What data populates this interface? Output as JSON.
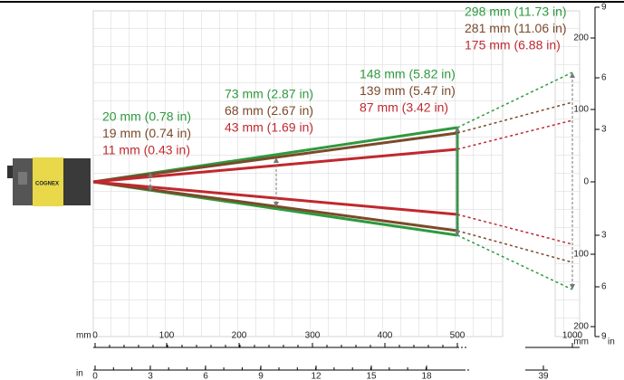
{
  "fov_groups": [
    {
      "lines": [
        "20 mm (0.78 in)",
        "19 mm (0.74 in)",
        "11 mm (0.43 in)"
      ]
    },
    {
      "lines": [
        "73 mm (2.87 in)",
        "68 mm (2.67 in)",
        "43 mm (1.69 in)"
      ]
    },
    {
      "lines": [
        "148 mm (5.82 in)",
        "139 mm (5.47 in)",
        "87 mm (3.42 in)"
      ]
    },
    {
      "lines": [
        "298 mm (11.73 in)",
        "281 mm (11.06 in)",
        "175 mm (6.88 in)"
      ]
    }
  ],
  "axes": {
    "bottom_mm": {
      "unit": "mm",
      "ticks": [
        "0",
        "100",
        "200",
        "300",
        "400",
        "500",
        "1000"
      ]
    },
    "bottom_in": {
      "unit": "in",
      "ticks": [
        "0",
        "3",
        "6",
        "9",
        "12",
        "15",
        "18",
        "39"
      ]
    },
    "right_mm": {
      "unit": "mm",
      "ticks": [
        "200",
        "100",
        "0",
        "100",
        "200"
      ]
    },
    "right_in": {
      "unit": "in",
      "ticks": [
        "9",
        "6",
        "3",
        "3",
        "6",
        "9"
      ]
    }
  },
  "camera": {
    "brand": "COGNEX"
  }
}
